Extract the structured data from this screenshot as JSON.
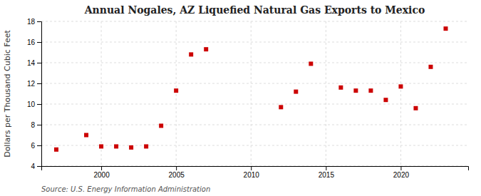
{
  "chart_data": {
    "type": "scatter",
    "title": "Annual Nogales, AZ Liquefied Natural Gas Exports to Mexico",
    "y_label": "Dollars per Thousand Cubic Feet",
    "source": "Source: U.S. Energy Information Administration",
    "x": [
      1997,
      1999,
      2000,
      2001,
      2002,
      2003,
      2004,
      2005,
      2006,
      2007,
      2012,
      2013,
      2014,
      2016,
      2017,
      2018,
      2019,
      2020,
      2021,
      2022,
      2023
    ],
    "values": [
      5.6,
      7.0,
      5.9,
      5.9,
      5.8,
      5.9,
      7.9,
      11.3,
      14.8,
      15.3,
      9.7,
      11.2,
      13.9,
      11.6,
      11.3,
      11.3,
      10.4,
      11.7,
      9.6,
      13.6,
      17.3
    ],
    "color": "#CC0000",
    "marker": "square",
    "xlim": [
      1996,
      2024.5
    ],
    "xticks": [
      2000,
      2005,
      2010,
      2015,
      2020
    ],
    "ylim": [
      4,
      18
    ],
    "yticks": [
      4,
      6,
      8,
      10,
      12,
      14,
      16,
      18
    ],
    "grid": true
  }
}
